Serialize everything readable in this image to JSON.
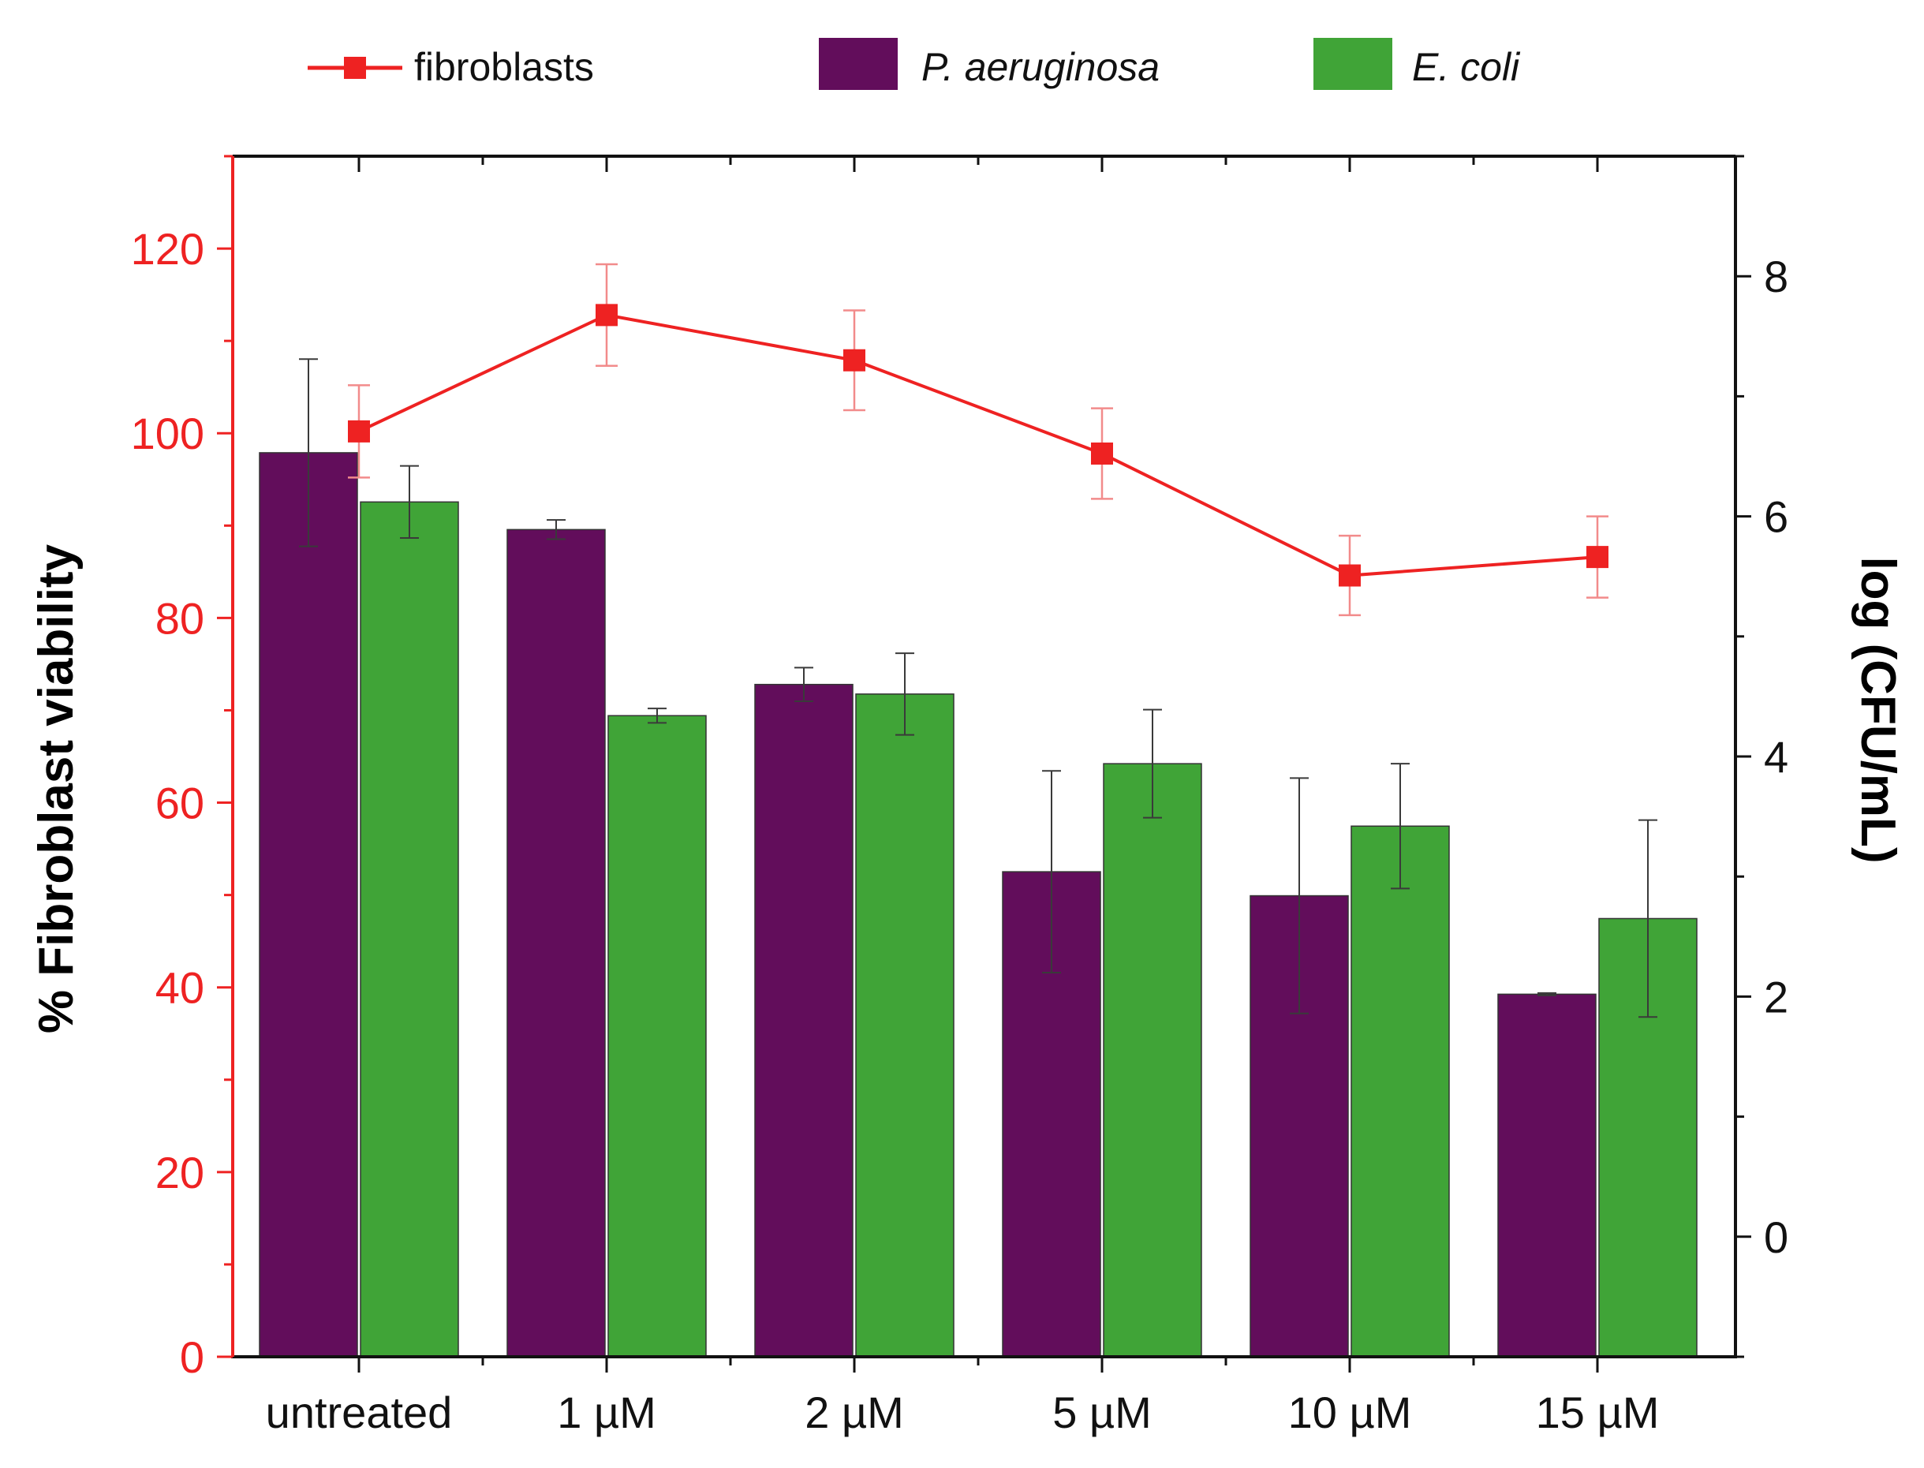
{
  "chart_data": {
    "type": "bar",
    "title": "",
    "categories": [
      "untreated",
      "1 µM",
      "2 µM",
      "5 µM",
      "10 µM",
      "15 µM"
    ],
    "xlabel": "",
    "ylabel_left": "% Fibroblast viability",
    "ylabel_right": "log (CFU/mL)",
    "ylim_left": [
      0,
      130
    ],
    "yticks_left": [
      "0",
      "20",
      "40",
      "60",
      "80",
      "100",
      "120"
    ],
    "ylim_right": [
      -1,
      9
    ],
    "yticks_right": [
      "0",
      "2",
      "4",
      "6",
      "8"
    ],
    "grid": false,
    "legend_position": "top",
    "legend": [
      {
        "label": "fibroblasts",
        "italic": false
      },
      {
        "label": "P. aeruginosa",
        "italic": true
      },
      {
        "label": "E. coli",
        "italic": true
      }
    ],
    "colors": {
      "fibroblasts": "#ee2222",
      "p_aeruginosa": "#620d5b",
      "e_coli": "#40a437",
      "left_axis": "#ee2222",
      "right_axis": "#111111"
    },
    "series": [
      {
        "name": "fibroblasts",
        "kind": "line",
        "axis": "left",
        "values": [
          100.2,
          112.8,
          107.9,
          97.8,
          84.6,
          86.6
        ],
        "errors": [
          5.0,
          5.5,
          5.4,
          4.9,
          4.3,
          4.4
        ]
      },
      {
        "name": "P. aeruginosa",
        "kind": "bar",
        "axis": "right",
        "values": [
          6.53,
          5.89,
          4.6,
          3.04,
          2.84,
          2.02
        ],
        "errors": [
          0.78,
          0.08,
          0.14,
          0.84,
          0.98,
          0.01
        ]
      },
      {
        "name": "E. coli",
        "kind": "bar",
        "axis": "right",
        "values": [
          6.12,
          4.34,
          4.52,
          3.94,
          3.42,
          2.65
        ],
        "errors": [
          0.3,
          0.06,
          0.34,
          0.45,
          0.52,
          0.82
        ]
      }
    ]
  }
}
